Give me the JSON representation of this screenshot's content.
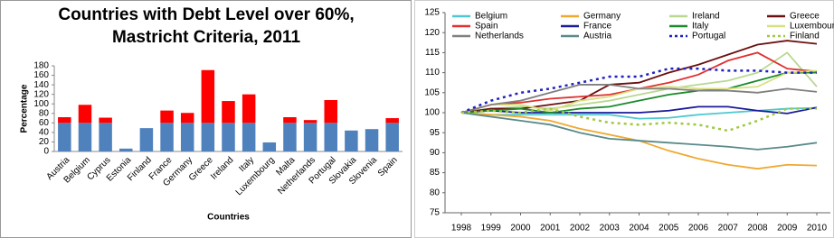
{
  "chart_data": [
    {
      "type": "bar",
      "stacked": true,
      "title": [
        "Countries with Debt Level over 60%,",
        "Mastricht Criteria, 2011"
      ],
      "xlabel": "Countries",
      "ylabel": "Percentage",
      "categories": [
        "Austria",
        "Belgium",
        "Cyprus",
        "Estonia",
        "Finland",
        "France",
        "Germany",
        "Greece",
        "Ireland",
        "Italy",
        "Luxembourg",
        "Malta",
        "Netherlands",
        "Portugal",
        "Slovakia",
        "Slovenia",
        "Spain"
      ],
      "series": [
        {
          "color": "#4f81bd",
          "values": [
            60,
            60,
            60,
            6,
            49,
            60,
            60,
            60,
            60,
            60,
            19,
            60,
            60,
            60,
            44,
            47,
            60
          ]
        },
        {
          "color": "#ff0000",
          "values": [
            12,
            38,
            11,
            0,
            0,
            26,
            21,
            111,
            46,
            60,
            0,
            12,
            6,
            48,
            0,
            0,
            10
          ]
        }
      ],
      "ylim": [
        0,
        180
      ],
      "yticks": [
        0,
        20,
        40,
        60,
        80,
        100,
        120,
        140,
        160,
        180
      ]
    },
    {
      "type": "line",
      "legend": "top",
      "x": [
        1998,
        1999,
        2000,
        2001,
        2002,
        2003,
        2004,
        2005,
        2006,
        2007,
        2008,
        2009,
        2010
      ],
      "xlim": [
        1998,
        2010
      ],
      "xticks": [
        1998,
        1999,
        2000,
        2001,
        2002,
        2003,
        2004,
        2005,
        2006,
        2007,
        2008,
        2009,
        2010
      ],
      "ylim": [
        75,
        125
      ],
      "yticks": [
        75,
        80,
        85,
        90,
        95,
        100,
        105,
        110,
        115,
        120,
        125
      ],
      "series": [
        {
          "name": "Belgium",
          "color": "#4bc8d0",
          "values": [
            100,
            99.5,
            99.5,
            99.5,
            99.5,
            99.5,
            98.5,
            98.7,
            99.5,
            100,
            100.5,
            101,
            101.2
          ]
        },
        {
          "name": "Germany",
          "color": "#f0a830",
          "values": [
            100,
            99.5,
            99,
            98,
            96,
            94.5,
            93,
            90.5,
            88.5,
            87,
            86,
            87,
            86.8
          ]
        },
        {
          "name": "Ireland",
          "color": "#b8d890",
          "values": [
            100,
            101,
            101.5,
            101,
            102,
            103,
            104.5,
            106,
            107,
            108,
            110,
            115,
            106.5
          ]
        },
        {
          "name": "Greece",
          "color": "#6b1010",
          "values": [
            100,
            101,
            101,
            102,
            103,
            107,
            107.5,
            110,
            112,
            114.5,
            117,
            118,
            117.2
          ]
        },
        {
          "name": "Spain",
          "color": "#e03030",
          "values": [
            100,
            102,
            102.5,
            103.5,
            104,
            104.5,
            106,
            107.5,
            109.5,
            113,
            115,
            111,
            110.3
          ]
        },
        {
          "name": "France",
          "color": "#1a1a9a",
          "values": [
            100,
            100.5,
            100,
            100,
            100,
            100,
            100,
            100.5,
            101.5,
            101.5,
            100.5,
            99.8,
            101.3
          ]
        },
        {
          "name": "Italy",
          "color": "#1a8a2a",
          "values": [
            100,
            100.5,
            101,
            100,
            101,
            101.5,
            103,
            104.5,
            105.5,
            106,
            108,
            110,
            110
          ]
        },
        {
          "name": "Luxembourg",
          "color": "#d8e080",
          "values": [
            100,
            102,
            102,
            100.5,
            103,
            104,
            106,
            106.5,
            106,
            106,
            106.5,
            110,
            110.5
          ]
        },
        {
          "name": "Netherlands",
          "color": "#808080",
          "values": [
            100,
            102,
            103,
            105,
            107,
            107,
            106,
            106,
            105.5,
            105.5,
            105,
            106,
            105.2
          ]
        },
        {
          "name": "Austria",
          "color": "#5a8a8a",
          "values": [
            100,
            99,
            98,
            97,
            95,
            93.5,
            93,
            92.5,
            92,
            91.5,
            90.8,
            91.5,
            92.5
          ]
        },
        {
          "name": "Portugal",
          "color": "#2020c0",
          "dash": true,
          "values": [
            100,
            103,
            105,
            106,
            107.5,
            109,
            109,
            111,
            111,
            110.5,
            110.5,
            110,
            110
          ]
        },
        {
          "name": "Finland",
          "color": "#a0c840",
          "dash": true,
          "values": [
            100,
            100.5,
            100,
            101,
            99,
            97.5,
            97,
            97.5,
            97,
            95.5,
            98,
            101,
            101
          ]
        }
      ]
    }
  ]
}
